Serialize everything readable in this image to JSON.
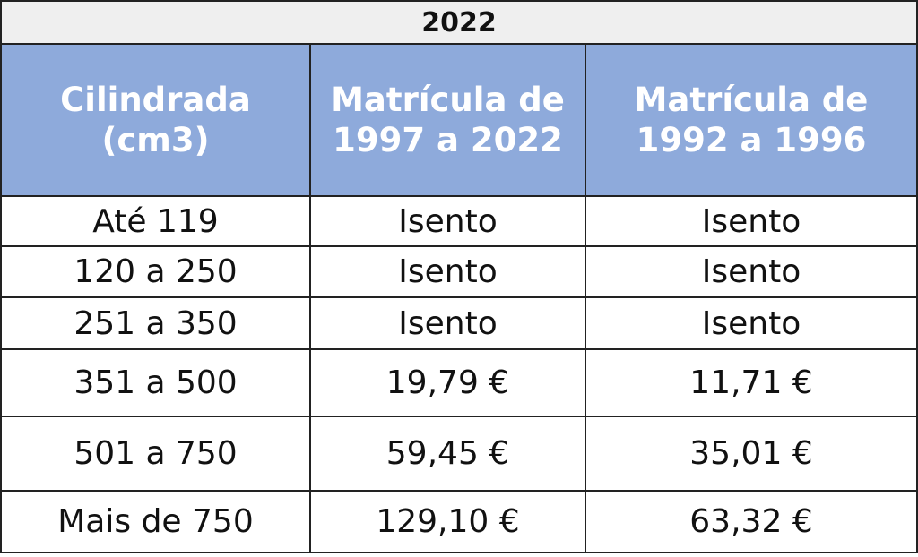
{
  "header": {
    "title": "2022"
  },
  "table": {
    "columns": [
      "Cilindrada (cm3)",
      "Matrícula de 1997 a 2022",
      "Matrícula de 1992 a 1996"
    ],
    "rows": [
      [
        "Até 119",
        "Isento",
        "Isento"
      ],
      [
        "120 a 250",
        "Isento",
        "Isento"
      ],
      [
        "251 a 350",
        "Isento",
        "Isento"
      ],
      [
        "351 a 500",
        "19,79 €",
        "11,71 €"
      ],
      [
        "501 a 750",
        "59,45 €",
        "35,01 €"
      ],
      [
        "Mais de 750",
        "129,10 €",
        "63,32 €"
      ]
    ]
  }
}
